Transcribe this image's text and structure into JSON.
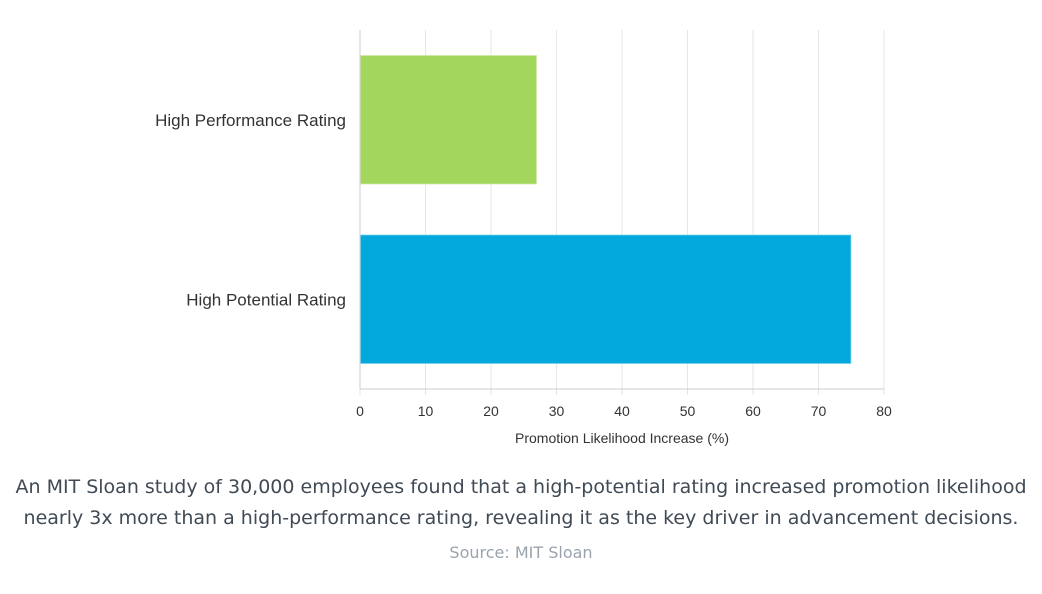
{
  "chart_data": {
    "type": "bar",
    "orientation": "horizontal",
    "categories": [
      "High Performance Rating",
      "High Potential Rating"
    ],
    "values": [
      27,
      75
    ],
    "colors": [
      "#a3d65c",
      "#03a9dd"
    ],
    "xlabel": "Promotion Likelihood Increase (%)",
    "ylabel": "",
    "xlim": [
      0,
      80
    ],
    "xticks": [
      0,
      10,
      20,
      30,
      40,
      50,
      60,
      70,
      80
    ],
    "grid": true,
    "legend": "none",
    "gridColor": "#e6e6e6",
    "axisColor": "#cccccc"
  },
  "caption": "An MIT Sloan study of 30,000 employees found that a high-potential rating increased promotion likelihood nearly 3x more than a high-performance rating, revealing it as the key driver in advancement decisions.",
  "source": "Source: MIT Sloan"
}
